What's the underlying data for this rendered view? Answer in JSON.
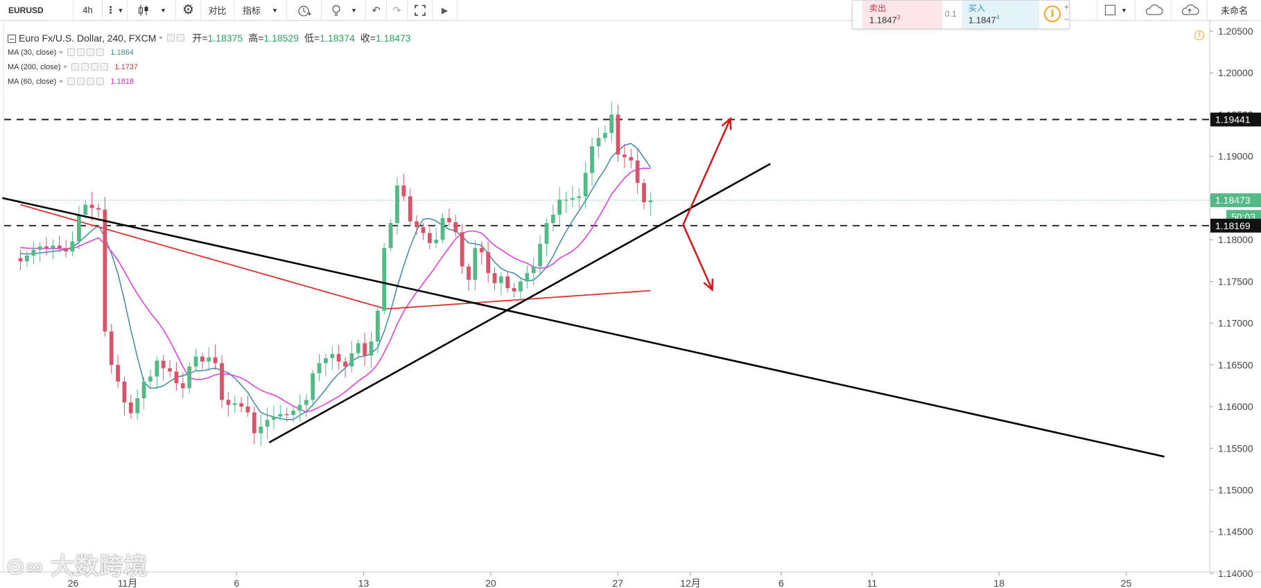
{
  "toolbar": {
    "symbol": "EURUSD",
    "interval": "4h",
    "compare_label": "对比",
    "indicators_label": "指标",
    "unnamed_label": "未命名"
  },
  "trade": {
    "sell_label": "卖出",
    "sell_price": "1.1847",
    "sell_sup": "3",
    "spread": "0.1",
    "buy_label": "买入",
    "buy_price": "1.1847",
    "buy_sup": "4"
  },
  "legend": {
    "title": "Euro Fx/U.S. Dollar, 240, FXCM",
    "open_label": "开=",
    "open": "1.18375",
    "high_label": "高=",
    "high": "1.18529",
    "low_label": "低=",
    "low": "1.18374",
    "close_label": "收=",
    "close": "1.18473",
    "ma30_label": "MA (30, close)",
    "ma30_value": "1.1864",
    "ma200_label": "MA (200, close)",
    "ma200_value": "1.1737",
    "ma60_label": "MA (60, close)",
    "ma60_value": "1.1818"
  },
  "watermark": "大数跨境",
  "colors": {
    "up": "#53b987",
    "down": "#d9546a",
    "ma30": "#3a8aa8",
    "ma200": "#d8322c",
    "ma60": "#e040e0",
    "trendline": "#000000",
    "arrow": "#d41a1a",
    "last_price": "#53b987"
  },
  "chart_data": {
    "type": "candlestick",
    "symbol": "EURUSD",
    "ylim": [
      1.1385,
      1.2055
    ],
    "y_ticks": [
      "1.20500",
      "1.20000",
      "1.19500",
      "1.19000",
      "1.18500",
      "1.18000",
      "1.17500",
      "1.17000",
      "1.16500",
      "1.16000",
      "1.15500",
      "1.15000",
      "1.14500",
      "1.14000"
    ],
    "x_ticks": [
      {
        "label": "26",
        "day": -9
      },
      {
        "label": "11月",
        "day": -6
      },
      {
        "label": "6",
        "day": 0
      },
      {
        "label": "13",
        "day": 7
      },
      {
        "label": "20",
        "day": 14
      },
      {
        "label": "27",
        "day": 21
      },
      {
        "label": "12月",
        "day": 25
      },
      {
        "label": "6",
        "day": 30
      },
      {
        "label": "11",
        "day": 35
      },
      {
        "label": "18",
        "day": 42
      },
      {
        "label": "25",
        "day": 49
      }
    ],
    "day_range": [
      -12.8,
      53.6
    ],
    "markers": {
      "resistance": "1.19441",
      "support": "1.18169",
      "last": "1.18473",
      "countdown": "50:03"
    },
    "levels": {
      "resistance": 1.19441,
      "support": 1.18169,
      "last": 1.18473
    },
    "closes": [
      1.1774,
      1.1781,
      1.1788,
      1.1792,
      1.179,
      1.1793,
      1.179,
      1.1786,
      1.1798,
      1.183,
      1.1842,
      1.1838,
      1.1836,
      1.169,
      1.165,
      1.163,
      1.1605,
      1.1592,
      1.161,
      1.163,
      1.1636,
      1.1655,
      1.1646,
      1.1642,
      1.1628,
      1.1622,
      1.1648,
      1.166,
      1.1654,
      1.1659,
      1.1652,
      1.1608,
      1.1602,
      1.1604,
      1.16,
      1.1593,
      1.1568,
      1.1576,
      1.1584,
      1.1588,
      1.1591,
      1.159,
      1.1595,
      1.1602,
      1.1608,
      1.164,
      1.1652,
      1.1658,
      1.1663,
      1.1654,
      1.1648,
      1.1664,
      1.1676,
      1.1661,
      1.1678,
      1.1715,
      1.179,
      1.182,
      1.1865,
      1.1852,
      1.1822,
      1.1815,
      1.1808,
      1.1796,
      1.18,
      1.1826,
      1.1821,
      1.1809,
      1.1768,
      1.1752,
      1.179,
      1.1785,
      1.176,
      1.1748,
      1.1756,
      1.1742,
      1.1738,
      1.175,
      1.176,
      1.1768,
      1.1795,
      1.182,
      1.183,
      1.1848,
      1.1848,
      1.185,
      1.1852,
      1.188,
      1.1912,
      1.1922,
      1.1928,
      1.195,
      1.1902,
      1.1899,
      1.1895,
      1.1868,
      1.1845,
      1.1847
    ]
  }
}
